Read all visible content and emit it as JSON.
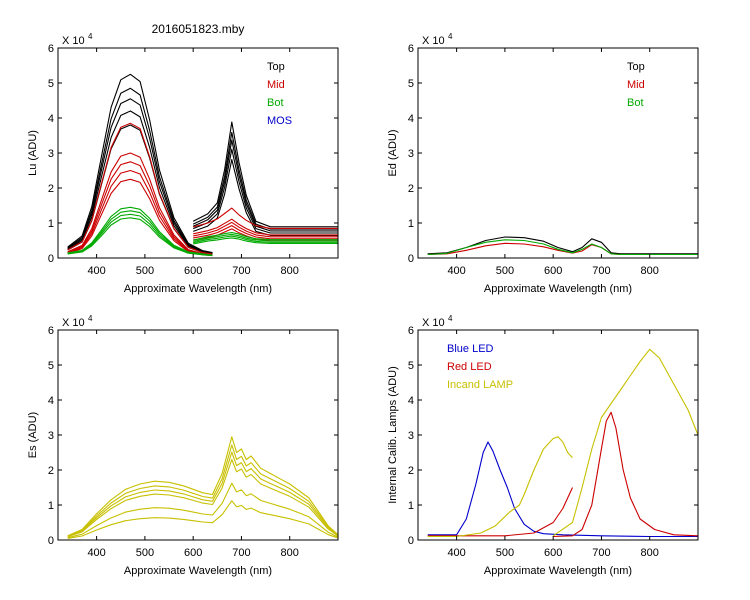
{
  "figure_title": "2016051823.mby",
  "colors": {
    "top": "#000000",
    "mid": "#cc0000",
    "bot": "#00aa00",
    "mos": "#0000cc",
    "es": "#c8c000",
    "blue_led": "#0000cc",
    "red_led": "#cc0000",
    "incand_lamp": "#c8c000"
  },
  "chart_data": [
    {
      "id": "lu",
      "type": "line",
      "title": "2016051823.mby",
      "xlabel": "Approximate Wavelength (nm)",
      "ylabel": "Lu (ADU)",
      "scale_label": "X 10",
      "scale_exp": "4",
      "xlim": [
        320,
        900
      ],
      "ylim": [
        0,
        6
      ],
      "xticks": [
        400,
        500,
        600,
        700,
        800
      ],
      "yticks": [
        0,
        1,
        2,
        3,
        4,
        5,
        6
      ],
      "legend": [
        {
          "label": "Top",
          "color": "#000000"
        },
        {
          "label": "Mid",
          "color": "#cc0000"
        },
        {
          "label": "Bot",
          "color": "#00aa00"
        },
        {
          "label": "MOS",
          "color": "#0000cc"
        }
      ],
      "series": [
        {
          "name": "Top",
          "color": "#000000",
          "scales": [
            5.25,
            4.85,
            4.55,
            4.2,
            3.8
          ],
          "segments": [
            {
              "x": [
                340,
                370,
                390,
                410,
                430,
                450,
                470,
                490,
                510,
                530,
                560,
                590,
                620,
                640
              ],
              "y": [
                0.06,
                0.12,
                0.28,
                0.55,
                0.82,
                0.97,
                1.0,
                0.96,
                0.75,
                0.48,
                0.22,
                0.08,
                0.04,
                0.03
              ]
            },
            {
              "x": [
                600,
                630,
                650,
                665,
                680,
                695,
                710,
                730,
                760,
                800,
                850,
                900
              ],
              "y": [
                0.2,
                0.24,
                0.3,
                0.48,
                0.74,
                0.52,
                0.34,
                0.2,
                0.17,
                0.17,
                0.17,
                0.17
              ]
            }
          ]
        },
        {
          "name": "Mid",
          "color": "#cc0000",
          "scales": [
            3.85,
            3.0,
            2.75,
            2.5,
            2.25
          ],
          "segments": [
            {
              "x": [
                340,
                370,
                390,
                410,
                430,
                450,
                470,
                490,
                510,
                530,
                560,
                590,
                620,
                640
              ],
              "y": [
                0.06,
                0.12,
                0.28,
                0.55,
                0.82,
                0.97,
                1.0,
                0.96,
                0.75,
                0.48,
                0.22,
                0.08,
                0.04,
                0.03
              ]
            },
            {
              "x": [
                600,
                630,
                650,
                665,
                680,
                695,
                710,
                730,
                760,
                800,
                850,
                900
              ],
              "y": [
                0.23,
                0.26,
                0.29,
                0.33,
                0.37,
                0.32,
                0.28,
                0.24,
                0.22,
                0.22,
                0.22,
                0.22
              ]
            }
          ]
        },
        {
          "name": "Bot",
          "color": "#00aa00",
          "scales": [
            1.45,
            1.35,
            1.25,
            1.15
          ],
          "segments": [
            {
              "x": [
                340,
                370,
                390,
                410,
                430,
                450,
                470,
                490,
                510,
                530,
                560,
                590,
                620,
                640
              ],
              "y": [
                0.1,
                0.15,
                0.3,
                0.55,
                0.82,
                0.97,
                1.0,
                0.96,
                0.78,
                0.52,
                0.25,
                0.12,
                0.08,
                0.06
              ]
            },
            {
              "x": [
                600,
                630,
                650,
                665,
                680,
                695,
                710,
                730,
                760,
                800,
                850,
                900
              ],
              "y": [
                0.35,
                0.42,
                0.45,
                0.48,
                0.5,
                0.47,
                0.42,
                0.38,
                0.36,
                0.36,
                0.36,
                0.36
              ]
            }
          ]
        }
      ]
    },
    {
      "id": "ed",
      "type": "line",
      "xlabel": "Approximate Wavelength (nm)",
      "ylabel": "Ed  (ADU)",
      "scale_label": "X 10",
      "scale_exp": "4",
      "xlim": [
        320,
        900
      ],
      "ylim": [
        0,
        6
      ],
      "xticks": [
        400,
        500,
        600,
        700,
        800
      ],
      "yticks": [
        0,
        1,
        2,
        3,
        4,
        5,
        6
      ],
      "legend": [
        {
          "label": "Top",
          "color": "#000000"
        },
        {
          "label": "Mid",
          "color": "#cc0000"
        },
        {
          "label": "Bot",
          "color": "#00aa00"
        }
      ],
      "series": [
        {
          "name": "Top",
          "color": "#000000",
          "scales": [
            1
          ],
          "segments": [
            {
              "x": [
                340,
                380,
                420,
                460,
                500,
                540,
                580,
                610,
                640,
                660,
                680,
                700,
                720,
                740,
                800,
                900
              ],
              "y": [
                0.12,
                0.15,
                0.3,
                0.5,
                0.6,
                0.58,
                0.48,
                0.3,
                0.18,
                0.3,
                0.55,
                0.45,
                0.15,
                0.12,
                0.12,
                0.12
              ]
            }
          ]
        },
        {
          "name": "Mid",
          "color": "#cc0000",
          "scales": [
            1
          ],
          "segments": [
            {
              "x": [
                340,
                380,
                420,
                460,
                500,
                540,
                580,
                610,
                640,
                660,
                680,
                700,
                720,
                740,
                800,
                900
              ],
              "y": [
                0.1,
                0.12,
                0.22,
                0.35,
                0.42,
                0.4,
                0.32,
                0.22,
                0.14,
                0.2,
                0.38,
                0.3,
                0.12,
                0.1,
                0.1,
                0.1
              ]
            }
          ]
        },
        {
          "name": "Bot",
          "color": "#00aa00",
          "scales": [
            1
          ],
          "segments": [
            {
              "x": [
                340,
                380,
                420,
                460,
                500,
                540,
                580,
                610,
                640,
                660,
                680,
                700,
                720,
                740,
                800,
                900
              ],
              "y": [
                0.1,
                0.13,
                0.3,
                0.45,
                0.52,
                0.5,
                0.4,
                0.25,
                0.15,
                0.25,
                0.4,
                0.3,
                0.12,
                0.1,
                0.1,
                0.1
              ]
            }
          ]
        }
      ]
    },
    {
      "id": "es",
      "type": "line",
      "xlabel": "Approximate Wavelength (nm)",
      "ylabel": "Es  (ADU)",
      "scale_label": "X 10",
      "scale_exp": "4",
      "xlim": [
        320,
        900
      ],
      "ylim": [
        0,
        6
      ],
      "xticks": [
        400,
        500,
        600,
        700,
        800
      ],
      "yticks": [
        0,
        1,
        2,
        3,
        4,
        5,
        6
      ],
      "legend": [],
      "series": [
        {
          "name": "Es",
          "color": "#c8c000",
          "scales": [
            1.0,
            0.92,
            0.85,
            0.78,
            0.55,
            0.38
          ],
          "segments": [
            {
              "x": [
                340,
                370,
                400,
                430,
                460,
                490,
                520,
                550,
                580,
                600,
                620,
                640,
                660,
                680,
                690,
                700,
                710,
                720,
                740,
                760,
                780,
                800,
                820,
                840,
                860,
                880,
                900
              ],
              "y": [
                0.12,
                0.3,
                0.75,
                1.15,
                1.45,
                1.6,
                1.68,
                1.65,
                1.55,
                1.45,
                1.35,
                1.3,
                1.9,
                2.95,
                2.5,
                2.6,
                2.3,
                2.4,
                2.05,
                1.9,
                1.75,
                1.6,
                1.4,
                1.2,
                0.8,
                0.4,
                0.15
              ]
            }
          ]
        }
      ]
    },
    {
      "id": "lamps",
      "type": "line",
      "xlabel": "Approximate Wavelength (nm)",
      "ylabel": "Internal Calib. Lamps (ADU)",
      "scale_label": "X 10",
      "scale_exp": "4",
      "xlim": [
        320,
        900
      ],
      "ylim": [
        0,
        6
      ],
      "xticks": [
        400,
        500,
        600,
        700,
        800
      ],
      "yticks": [
        0,
        1,
        2,
        3,
        4,
        5,
        6
      ],
      "legend": [
        {
          "label": "Blue LED",
          "color": "#0000cc"
        },
        {
          "label": "Red LED",
          "color": "#cc0000"
        },
        {
          "label": "Incand LAMP",
          "color": "#c8c000"
        }
      ],
      "series": [
        {
          "name": "Blue LED",
          "color": "#0000cc",
          "scales": [
            1
          ],
          "segments": [
            {
              "x": [
                340,
                400,
                420,
                440,
                455,
                465,
                475,
                490,
                505,
                520,
                540,
                560,
                580,
                620,
                700,
                800,
                900
              ],
              "y": [
                0.15,
                0.15,
                0.6,
                1.6,
                2.5,
                2.8,
                2.55,
                2.0,
                1.5,
                0.9,
                0.45,
                0.25,
                0.18,
                0.15,
                0.12,
                0.1,
                0.1
              ]
            }
          ]
        },
        {
          "name": "Red LED",
          "color": "#cc0000",
          "scales": [
            1
          ],
          "segments": [
            {
              "x": [
                340,
                500,
                560,
                600,
                620,
                640
              ],
              "y": [
                0.12,
                0.12,
                0.2,
                0.5,
                0.9,
                1.5
              ]
            },
            {
              "x": [
                600,
                640,
                660,
                680,
                700,
                710,
                720,
                730,
                745,
                760,
                780,
                810,
                850,
                900
              ],
              "y": [
                0.1,
                0.12,
                0.3,
                1.0,
                2.6,
                3.4,
                3.65,
                3.2,
                2.0,
                1.2,
                0.6,
                0.3,
                0.15,
                0.12
              ]
            }
          ]
        },
        {
          "name": "Incand LAMP",
          "color": "#c8c000",
          "scales": [
            1
          ],
          "segments": [
            {
              "x": [
                340,
                400,
                450,
                480,
                510,
                530,
                540,
                560,
                580,
                600,
                610,
                620,
                630,
                640
              ],
              "y": [
                0.1,
                0.1,
                0.2,
                0.4,
                0.8,
                1.0,
                1.3,
                2.0,
                2.6,
                2.9,
                2.95,
                2.8,
                2.5,
                2.35
              ]
            },
            {
              "x": [
                600,
                640,
                660,
                680,
                700,
                720,
                740,
                760,
                780,
                800,
                820,
                840,
                860,
                880,
                900
              ],
              "y": [
                0.12,
                0.5,
                1.5,
                2.6,
                3.5,
                3.9,
                4.3,
                4.7,
                5.1,
                5.45,
                5.2,
                4.7,
                4.2,
                3.7,
                3.0
              ]
            }
          ]
        }
      ]
    }
  ]
}
